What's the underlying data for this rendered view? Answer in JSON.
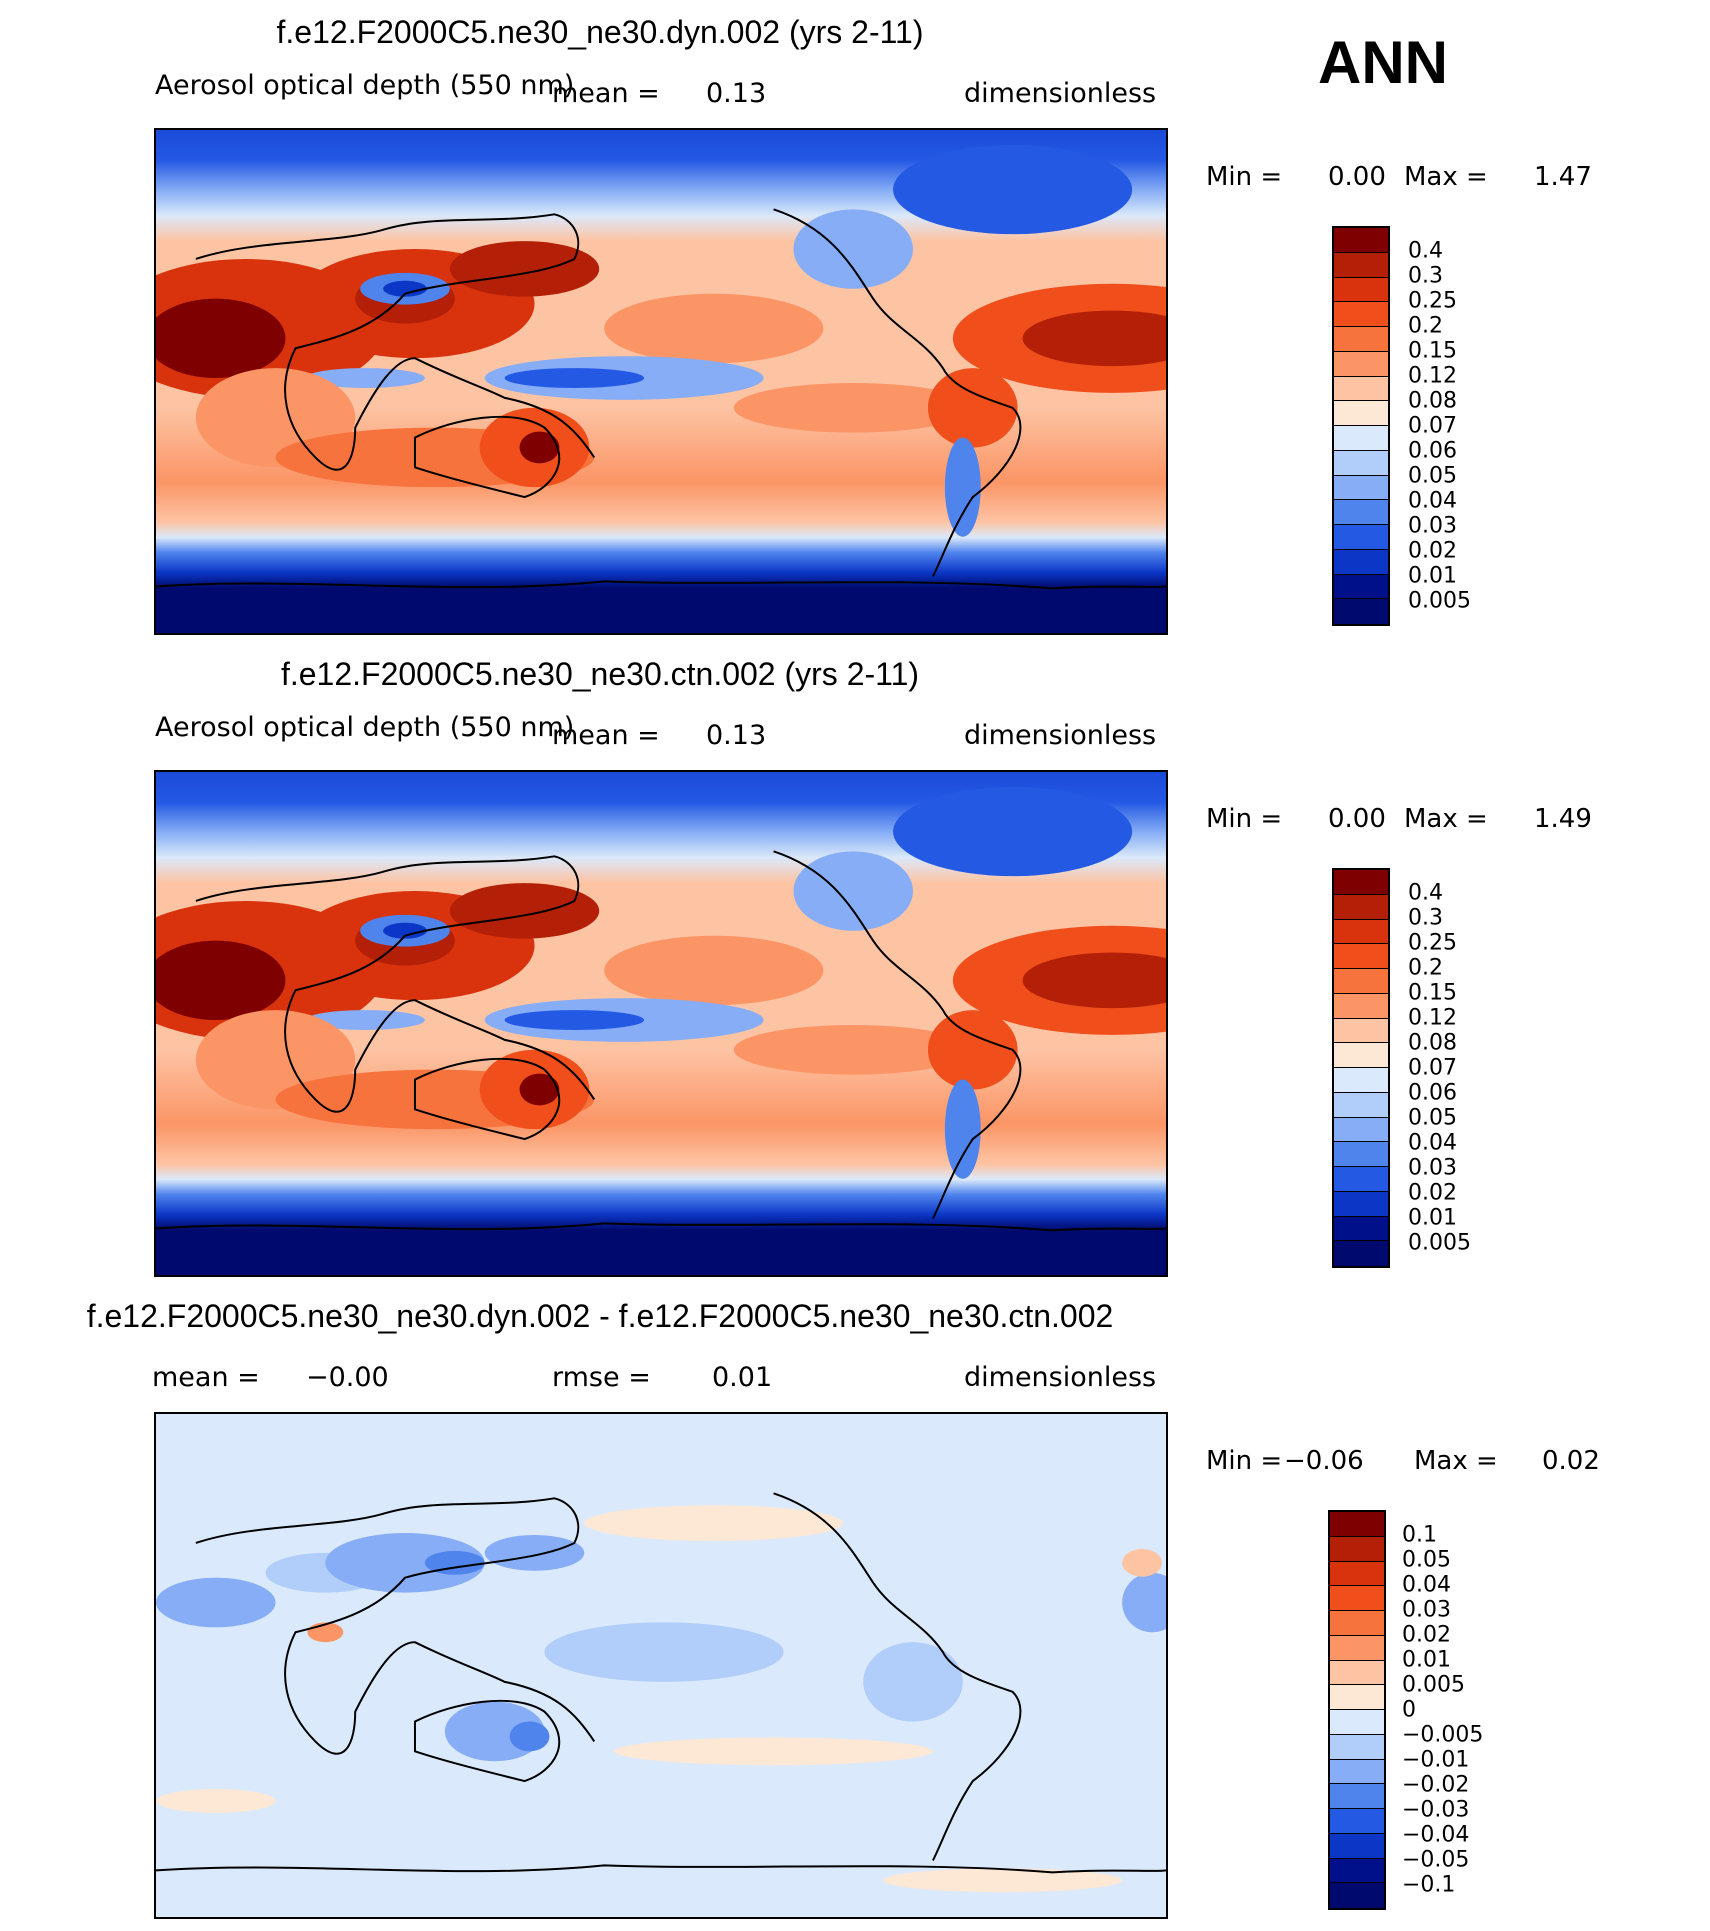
{
  "season": "ANN",
  "chart_data": [
    {
      "type": "heatmap",
      "title": "f.e12.F2000C5.ne30_ne30.dyn.002 (yrs 2-11)",
      "variable": "Aerosol optical depth (550 nm)",
      "mean_label": "mean =",
      "mean_value": "0.13",
      "units": "dimensionless",
      "min_label": "Min =",
      "min_value": "0.00",
      "max_label": "Max =",
      "max_value": "1.47",
      "colorbar_levels": [
        "0.4",
        "0.3",
        "0.25",
        "0.2",
        "0.15",
        "0.12",
        "0.08",
        "0.07",
        "0.06",
        "0.05",
        "0.04",
        "0.03",
        "0.02",
        "0.01",
        "0.005"
      ],
      "colorbar_colors": [
        "#7e0000",
        "#b31f07",
        "#d8330d",
        "#f04e1b",
        "#f7733e",
        "#fb9566",
        "#fdc4a4",
        "#fde8d6",
        "#dae9fb",
        "#b1cdf9",
        "#86adf5",
        "#4f84ed",
        "#2459e4",
        "#0b36c6",
        "#000f8a",
        "#000a6e"
      ]
    },
    {
      "type": "heatmap",
      "title": "f.e12.F2000C5.ne30_ne30.ctn.002 (yrs 2-11)",
      "variable": "Aerosol optical depth (550 nm)",
      "mean_label": "mean =",
      "mean_value": "0.13",
      "units": "dimensionless",
      "min_label": "Min =",
      "min_value": "0.00",
      "max_label": "Max =",
      "max_value": "1.49",
      "colorbar_levels": [
        "0.4",
        "0.3",
        "0.25",
        "0.2",
        "0.15",
        "0.12",
        "0.08",
        "0.07",
        "0.06",
        "0.05",
        "0.04",
        "0.03",
        "0.02",
        "0.01",
        "0.005"
      ],
      "colorbar_colors": [
        "#7e0000",
        "#b31f07",
        "#d8330d",
        "#f04e1b",
        "#f7733e",
        "#fb9566",
        "#fdc4a4",
        "#fde8d6",
        "#dae9fb",
        "#b1cdf9",
        "#86adf5",
        "#4f84ed",
        "#2459e4",
        "#0b36c6",
        "#000f8a",
        "#000a6e"
      ]
    },
    {
      "type": "heatmap",
      "title": "f.e12.F2000C5.ne30_ne30.dyn.002 - f.e12.F2000C5.ne30_ne30.ctn.002",
      "mean_label": "mean =",
      "mean_value": "−0.00",
      "rmse_label": "rmse =",
      "rmse_value": "0.01",
      "units": "dimensionless",
      "min_label": "Min =",
      "min_value": "−0.06",
      "max_label": "Max =",
      "max_value": "0.02",
      "colorbar_levels": [
        "0.1",
        "0.05",
        "0.04",
        "0.03",
        "0.02",
        "0.01",
        "0.005",
        "0",
        "−0.005",
        "−0.01",
        "−0.02",
        "−0.03",
        "−0.04",
        "−0.05",
        "−0.1"
      ],
      "colorbar_colors": [
        "#7e0000",
        "#b31f07",
        "#d8330d",
        "#f04e1b",
        "#f7733e",
        "#fb9566",
        "#fdc4a4",
        "#fde8d6",
        "#dae9fb",
        "#b1cdf9",
        "#86adf5",
        "#4f84ed",
        "#2459e4",
        "#0b36c6",
        "#000f8a",
        "#000a6e"
      ]
    }
  ]
}
